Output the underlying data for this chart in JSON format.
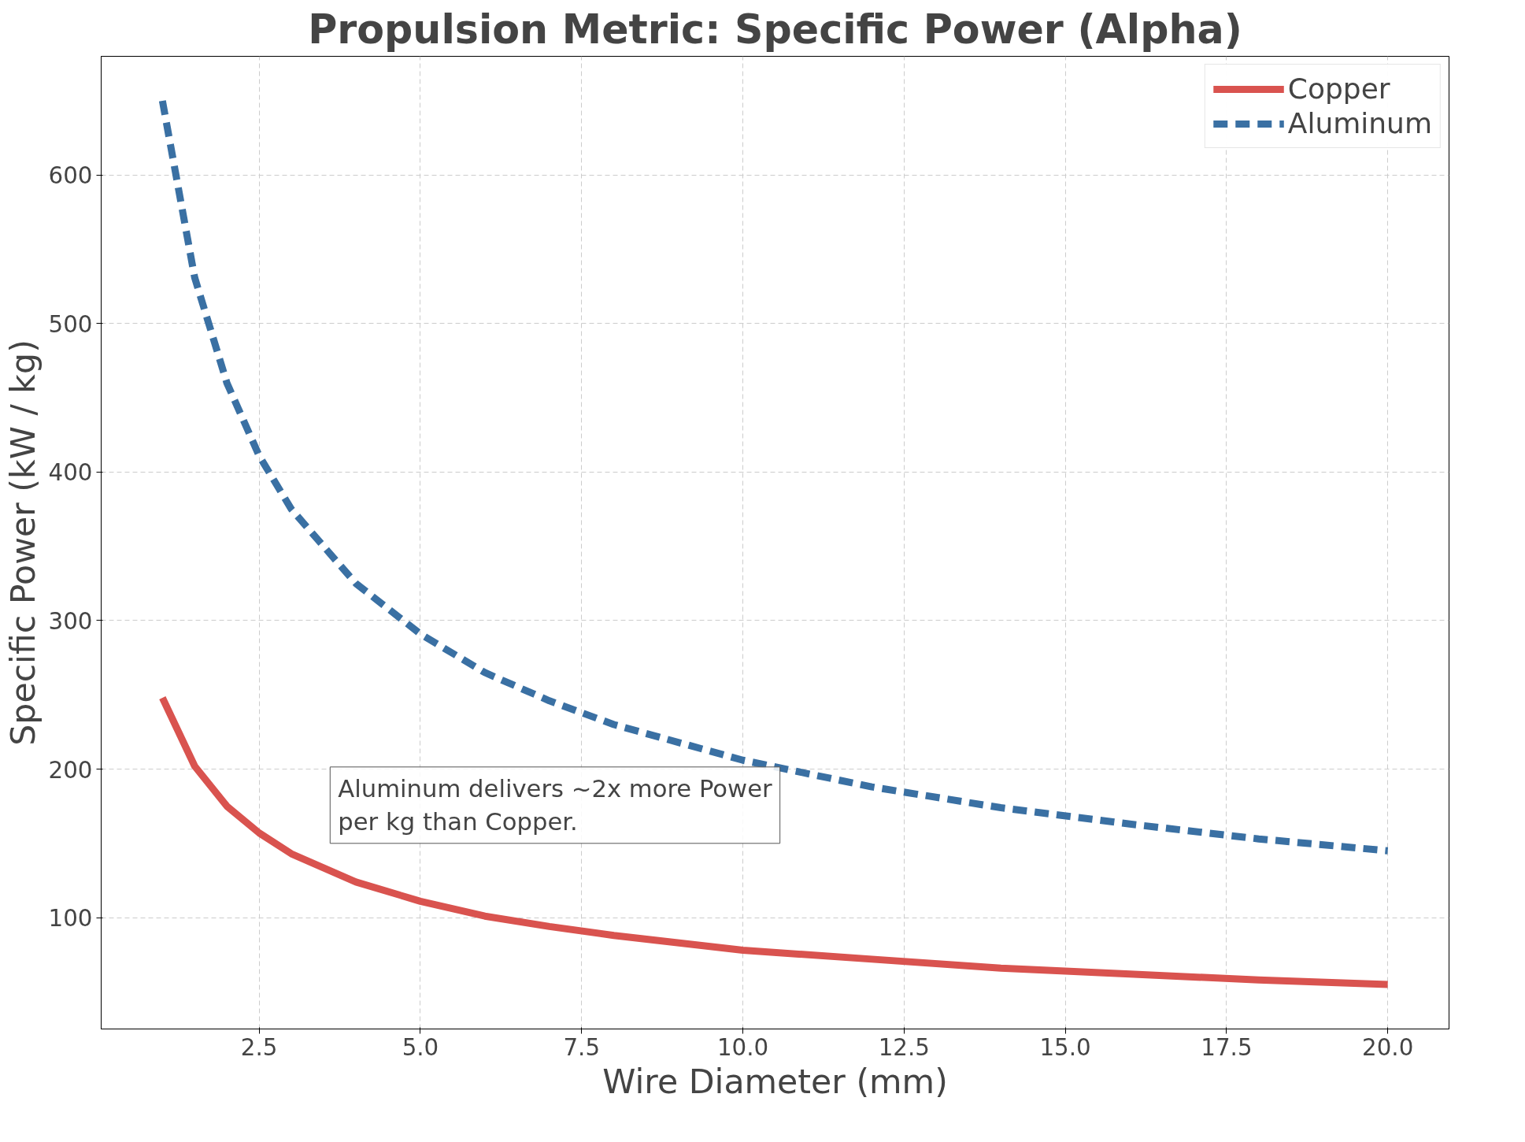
{
  "chart_data": {
    "type": "line",
    "title": "Propulsion Metric: Specific Power (Alpha)",
    "xlabel": "Wire Diameter (mm)",
    "ylabel": "Specific Power (kW / kg)",
    "x": [
      1,
      1.5,
      2,
      2.5,
      3,
      4,
      5,
      6,
      7,
      8,
      10,
      12,
      14,
      16,
      18,
      20
    ],
    "series": [
      {
        "name": "Copper",
        "color": "#d9534f",
        "line_style": "solid",
        "values": [
          248,
          202,
          175,
          157,
          143,
          124,
          111,
          101,
          94,
          88,
          78,
          72,
          66,
          62,
          58,
          55
        ]
      },
      {
        "name": "Aluminum",
        "color": "#3a70a3",
        "line_style": "dashed",
        "values": [
          650,
          531,
          460,
          411,
          375,
          325,
          291,
          265,
          246,
          230,
          206,
          188,
          174,
          163,
          153,
          145
        ]
      }
    ],
    "xlim": [
      0.05,
      20.95
    ],
    "ylim": [
      25,
      680
    ],
    "xticks": [
      {
        "value": 2.5,
        "label": "2.5"
      },
      {
        "value": 5,
        "label": "5.0"
      },
      {
        "value": 7.5,
        "label": "7.5"
      },
      {
        "value": 10,
        "label": "10.0"
      },
      {
        "value": 12.5,
        "label": "12.5"
      },
      {
        "value": 15,
        "label": "15.0"
      },
      {
        "value": 17.5,
        "label": "17.5"
      },
      {
        "value": 20,
        "label": "20.0"
      }
    ],
    "yticks": [
      100,
      200,
      300,
      400,
      500,
      600
    ],
    "grid": true,
    "legend": "top right",
    "annotations": [
      "Aluminum delivers ~2x more Power\nper kg than Copper."
    ]
  }
}
